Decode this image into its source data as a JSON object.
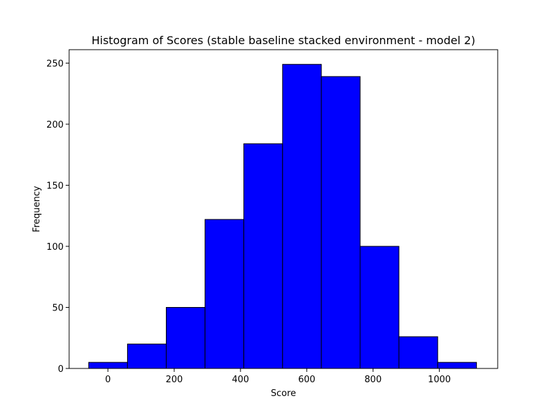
{
  "chart_data": {
    "type": "bar",
    "title": "Histogram of Scores (stable baseline stacked environment - model 2)",
    "xlabel": "Score",
    "ylabel": "Frequency",
    "bar_color": "#0000ff",
    "edge_color": "#000000",
    "xlim": [
      -117,
      1176
    ],
    "ylim": [
      0,
      261
    ],
    "xticks": [
      0,
      200,
      400,
      600,
      800,
      1000
    ],
    "yticks": [
      0,
      50,
      100,
      150,
      200,
      250
    ],
    "bins": [
      {
        "start": -58,
        "end": 59,
        "value": 5
      },
      {
        "start": 59,
        "end": 176,
        "value": 20
      },
      {
        "start": 176,
        "end": 293,
        "value": 50
      },
      {
        "start": 293,
        "end": 410,
        "value": 122
      },
      {
        "start": 410,
        "end": 527,
        "value": 184
      },
      {
        "start": 527,
        "end": 644,
        "value": 249
      },
      {
        "start": 644,
        "end": 761,
        "value": 239
      },
      {
        "start": 761,
        "end": 878,
        "value": 100
      },
      {
        "start": 878,
        "end": 995,
        "value": 26
      },
      {
        "start": 995,
        "end": 1112,
        "value": 5
      }
    ],
    "grid": false,
    "legend": "none"
  }
}
